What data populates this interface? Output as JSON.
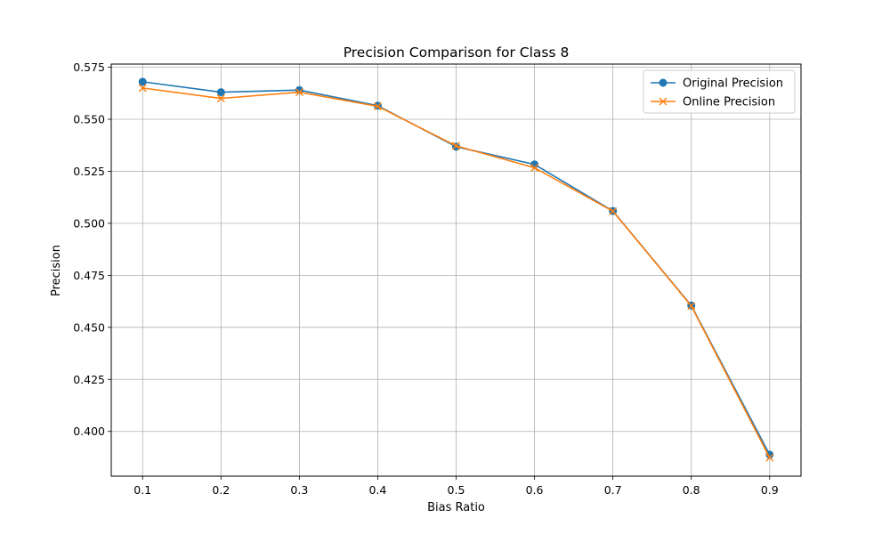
{
  "chart_data": {
    "type": "line",
    "title": "Precision Comparison for Class 8",
    "xlabel": "Bias Ratio",
    "ylabel": "Precision",
    "x": [
      0.1,
      0.2,
      0.3,
      0.4,
      0.5,
      0.6,
      0.7,
      0.8,
      0.9
    ],
    "x_ticks": [
      "0.1",
      "0.2",
      "0.3",
      "0.4",
      "0.5",
      "0.6",
      "0.7",
      "0.8",
      "0.9"
    ],
    "y_ticks": [
      "0.400",
      "0.425",
      "0.450",
      "0.475",
      "0.500",
      "0.525",
      "0.550",
      "0.575"
    ],
    "xlim": [
      0.06,
      0.94
    ],
    "ylim": [
      0.3785,
      0.5765
    ],
    "grid": true,
    "legend_position": "top-right",
    "series": [
      {
        "name": "Original Precision",
        "color": "#1f77b4",
        "marker": "circle",
        "values": [
          0.568,
          0.563,
          0.564,
          0.5565,
          0.5368,
          0.5283,
          0.5059,
          0.4605,
          0.3888
        ]
      },
      {
        "name": "Online Precision",
        "color": "#ff7f0e",
        "marker": "x",
        "values": [
          0.565,
          0.56,
          0.563,
          0.5562,
          0.5372,
          0.5267,
          0.5058,
          0.4603,
          0.3874
        ]
      }
    ]
  }
}
